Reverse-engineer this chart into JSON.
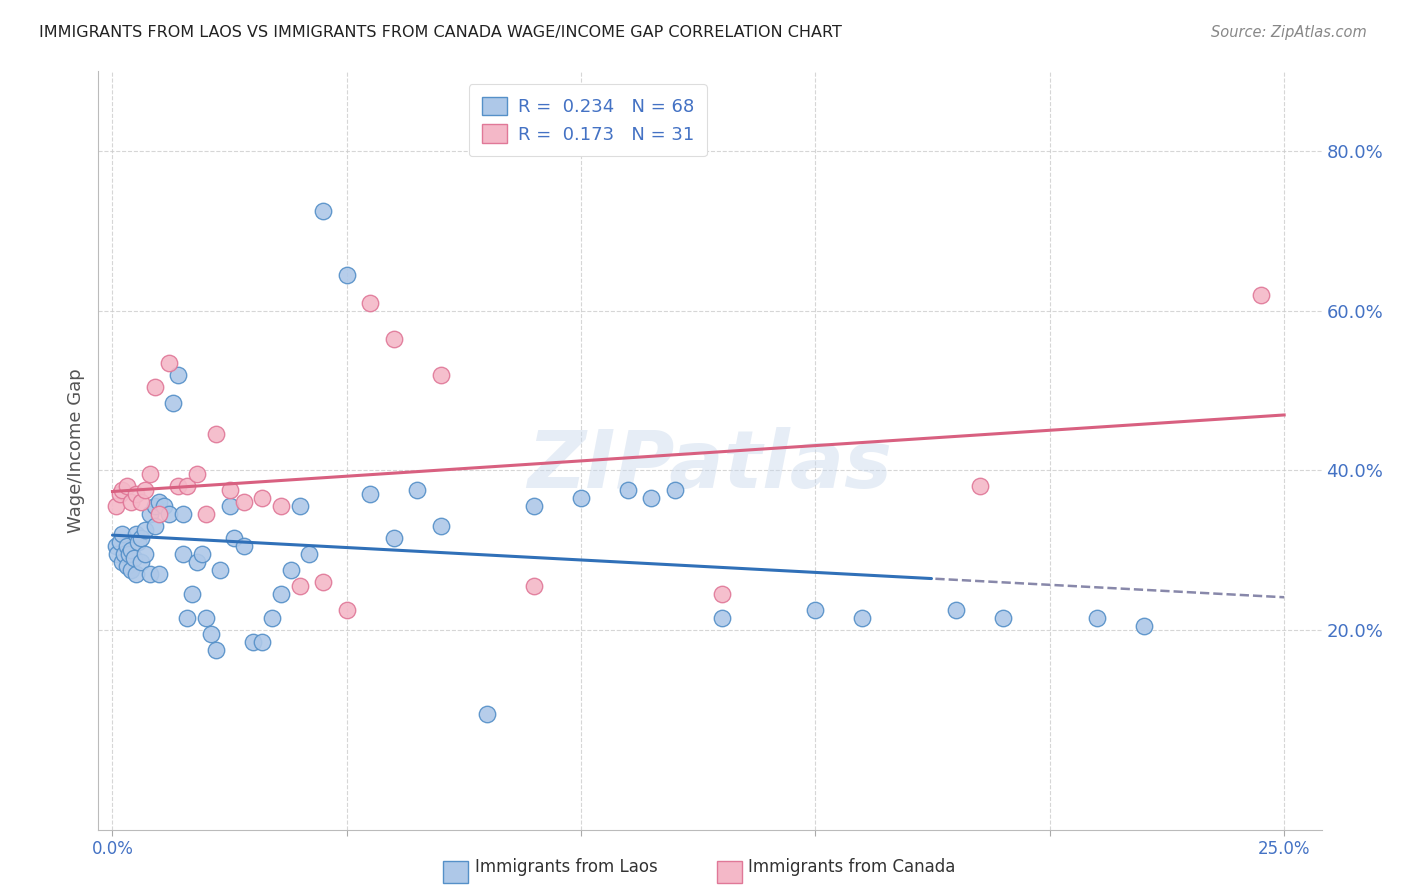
{
  "title": "IMMIGRANTS FROM LAOS VS IMMIGRANTS FROM CANADA WAGE/INCOME GAP CORRELATION CHART",
  "source": "Source: ZipAtlas.com",
  "ylabel": "Wage/Income Gap",
  "ytick_vals": [
    0.2,
    0.4,
    0.6,
    0.8
  ],
  "ytick_labels": [
    "20.0%",
    "40.0%",
    "60.0%",
    "80.0%"
  ],
  "xtick_vals": [
    0.0,
    0.05,
    0.1,
    0.15,
    0.2,
    0.25
  ],
  "xtick_labels": [
    "0.0%",
    "",
    "",
    "",
    "",
    "25.0%"
  ],
  "xlim": [
    -0.003,
    0.258
  ],
  "ylim": [
    -0.05,
    0.9
  ],
  "laos_R": 0.234,
  "laos_N": 68,
  "canada_R": 0.173,
  "canada_N": 31,
  "laos_fill_color": "#aec8e8",
  "canada_fill_color": "#f4b8c8",
  "laos_edge_color": "#5590c8",
  "canada_edge_color": "#e07898",
  "laos_line_color": "#3070b8",
  "canada_line_color": "#d86080",
  "tick_color": "#4472c4",
  "watermark": "ZIPatlas",
  "legend_text_color": "#4472c4",
  "laos_x": [
    0.0008,
    0.001,
    0.0015,
    0.002,
    0.002,
    0.0025,
    0.003,
    0.003,
    0.0035,
    0.004,
    0.004,
    0.0045,
    0.005,
    0.005,
    0.0055,
    0.006,
    0.006,
    0.007,
    0.007,
    0.008,
    0.008,
    0.009,
    0.009,
    0.01,
    0.01,
    0.011,
    0.012,
    0.013,
    0.014,
    0.015,
    0.015,
    0.016,
    0.017,
    0.018,
    0.019,
    0.02,
    0.021,
    0.022,
    0.023,
    0.025,
    0.026,
    0.028,
    0.03,
    0.032,
    0.034,
    0.036,
    0.038,
    0.04,
    0.042,
    0.045,
    0.05,
    0.055,
    0.06,
    0.065,
    0.07,
    0.08,
    0.09,
    0.1,
    0.11,
    0.115,
    0.12,
    0.13,
    0.15,
    0.16,
    0.18,
    0.19,
    0.21,
    0.22
  ],
  "laos_y": [
    0.305,
    0.295,
    0.31,
    0.285,
    0.32,
    0.295,
    0.305,
    0.28,
    0.295,
    0.3,
    0.275,
    0.29,
    0.32,
    0.27,
    0.31,
    0.315,
    0.285,
    0.325,
    0.295,
    0.345,
    0.27,
    0.355,
    0.33,
    0.36,
    0.27,
    0.355,
    0.345,
    0.485,
    0.52,
    0.295,
    0.345,
    0.215,
    0.245,
    0.285,
    0.295,
    0.215,
    0.195,
    0.175,
    0.275,
    0.355,
    0.315,
    0.305,
    0.185,
    0.185,
    0.215,
    0.245,
    0.275,
    0.355,
    0.295,
    0.725,
    0.645,
    0.37,
    0.315,
    0.375,
    0.33,
    0.095,
    0.355,
    0.365,
    0.375,
    0.365,
    0.375,
    0.215,
    0.225,
    0.215,
    0.225,
    0.215,
    0.215,
    0.205
  ],
  "canada_x": [
    0.0008,
    0.0015,
    0.002,
    0.003,
    0.004,
    0.005,
    0.006,
    0.007,
    0.008,
    0.009,
    0.01,
    0.012,
    0.014,
    0.016,
    0.018,
    0.02,
    0.022,
    0.025,
    0.028,
    0.032,
    0.036,
    0.04,
    0.045,
    0.05,
    0.055,
    0.06,
    0.07,
    0.09,
    0.13,
    0.185,
    0.245
  ],
  "canada_y": [
    0.355,
    0.37,
    0.375,
    0.38,
    0.36,
    0.37,
    0.36,
    0.375,
    0.395,
    0.505,
    0.345,
    0.535,
    0.38,
    0.38,
    0.395,
    0.345,
    0.445,
    0.375,
    0.36,
    0.365,
    0.355,
    0.255,
    0.26,
    0.225,
    0.61,
    0.565,
    0.52,
    0.255,
    0.245,
    0.38,
    0.62
  ]
}
